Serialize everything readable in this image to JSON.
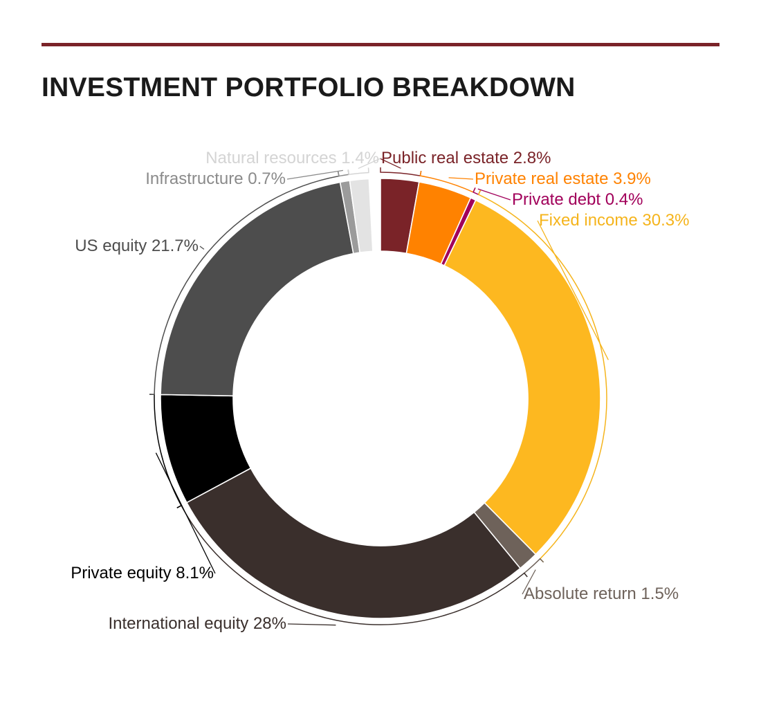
{
  "header": {
    "title": "INVESTMENT PORTFOLIO BREAKDOWN"
  },
  "accent_color": "#7a2328",
  "chart_data": {
    "type": "pie",
    "style": "donut",
    "title": "INVESTMENT PORTFOLIO BREAKDOWN",
    "slices": [
      {
        "name": "Public real estate",
        "value": 2.8,
        "label": "Public real estate 2.8%",
        "color": "#7a2328",
        "label_color": "#7a2328"
      },
      {
        "name": "Private real estate",
        "value": 3.9,
        "label": "Private real estate 3.9%",
        "color": "#ff8200",
        "label_color": "#ff8200"
      },
      {
        "name": "Private debt",
        "value": 0.4,
        "label": "Private debt 0.4%",
        "color": "#a1005a",
        "label_color": "#a1005a"
      },
      {
        "name": "Fixed income",
        "value": 30.3,
        "label": "Fixed income 30.3%",
        "color": "#fdb820",
        "label_color": "#f5b41c"
      },
      {
        "name": "Absolute return",
        "value": 1.5,
        "label": "Absolute return 1.5%",
        "color": "#6e625a",
        "label_color": "#6e625a"
      },
      {
        "name": "International equity",
        "value": 28,
        "label": "International equity 28%",
        "color": "#3a2f2c",
        "label_color": "#3a2f2c"
      },
      {
        "name": "Private equity",
        "value": 8.1,
        "label": "Private equity 8.1%",
        "color": "#000000",
        "label_color": "#000000"
      },
      {
        "name": "US equity",
        "value": 21.7,
        "label": "US equity 21.7%",
        "color": "#4d4d4d",
        "label_color": "#4d4d4d"
      },
      {
        "name": "Infrastructure",
        "value": 0.7,
        "label": "Infrastructure 0.7%",
        "color": "#9b9b9b",
        "label_color": "#8a8a8a"
      },
      {
        "name": "Natural resources",
        "value": 1.4,
        "label": "Natural resources 1.4%",
        "color": "#e3e3e3",
        "label_color": "#d4d4d4"
      }
    ]
  }
}
